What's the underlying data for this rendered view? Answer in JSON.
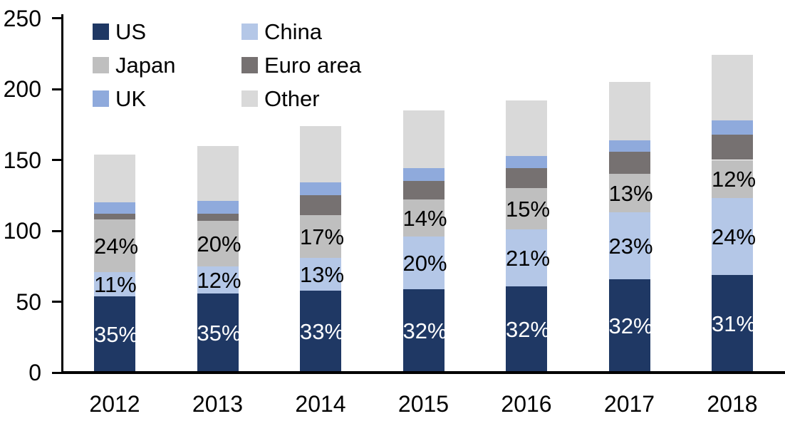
{
  "chart_data": {
    "type": "bar",
    "stacked": true,
    "categories": [
      "2012",
      "2013",
      "2014",
      "2015",
      "2016",
      "2017",
      "2018"
    ],
    "series": [
      {
        "name": "US",
        "color": "#1f3864",
        "values": [
          54,
          56,
          58,
          59,
          61,
          66,
          69
        ],
        "labels": [
          "35%",
          "35%",
          "33%",
          "32%",
          "32%",
          "32%",
          "31%"
        ],
        "label_color": "#ffffff"
      },
      {
        "name": "China",
        "color": "#b4c7e7",
        "values": [
          17,
          19,
          23,
          37,
          40,
          47,
          54
        ],
        "labels": [
          "11%",
          "12%",
          "13%",
          "20%",
          "21%",
          "23%",
          "24%"
        ],
        "label_color": "#000000"
      },
      {
        "name": "Japan",
        "color": "#bfbfbf",
        "values": [
          37,
          32,
          30,
          26,
          29,
          27,
          27
        ],
        "labels": [
          "24%",
          "20%",
          "17%",
          "14%",
          "15%",
          "13%",
          "12%"
        ],
        "label_color": "#000000"
      },
      {
        "name": "Euro area",
        "color": "#767171",
        "values": [
          4,
          5,
          14,
          13,
          14,
          16,
          18
        ],
        "labels": null,
        "label_color": null
      },
      {
        "name": "UK",
        "color": "#8faadc",
        "values": [
          8,
          9,
          9,
          9,
          9,
          8,
          10
        ],
        "labels": null,
        "label_color": null
      },
      {
        "name": "Other",
        "color": "#d9d9d9",
        "values": [
          34,
          39,
          40,
          41,
          39,
          41,
          46
        ],
        "labels": null,
        "label_color": null
      }
    ],
    "totals": [
      154,
      160,
      174,
      185,
      192,
      205,
      224
    ],
    "y_axis": {
      "min": 0,
      "max": 250,
      "step": 50,
      "tick_labels": [
        "0",
        "50",
        "100",
        "150",
        "200",
        "250"
      ]
    },
    "legend": {
      "position": "top-left",
      "display_order": [
        "US",
        "China",
        "Japan",
        "Euro area",
        "UK",
        "Other"
      ]
    },
    "axis_color": "#000000",
    "background_color": "#ffffff"
  }
}
